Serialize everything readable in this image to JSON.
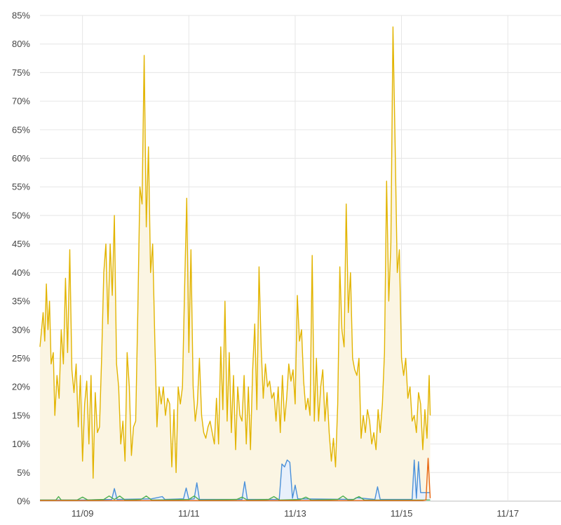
{
  "chart_data": {
    "type": "area",
    "title": "",
    "xlabel": "",
    "ylabel": "",
    "ylim": [
      0,
      85
    ],
    "y_unit": "%",
    "y_ticks": [
      0,
      5,
      10,
      15,
      20,
      25,
      30,
      35,
      40,
      45,
      50,
      55,
      60,
      65,
      70,
      75,
      80,
      85
    ],
    "y_tick_labels": [
      "0%",
      "5%",
      "10%",
      "15%",
      "20%",
      "25%",
      "30%",
      "35%",
      "40%",
      "45%",
      "50%",
      "55%",
      "60%",
      "65%",
      "70%",
      "75%",
      "80%",
      "85%"
    ],
    "x_ticks": [
      "11/09",
      "11/11",
      "11/13",
      "11/15",
      "11/17"
    ],
    "x_tick_positions": [
      1.5,
      3.5,
      5.5,
      7.5,
      9.5
    ],
    "xlim": [
      0.7,
      10.5
    ],
    "grid": true,
    "legend": "none",
    "series": [
      {
        "color": "#e2b400",
        "fill": "#fbf5e3",
        "points": [
          [
            0.7,
            27
          ],
          [
            0.73,
            30
          ],
          [
            0.76,
            33
          ],
          [
            0.79,
            28
          ],
          [
            0.82,
            38
          ],
          [
            0.85,
            30
          ],
          [
            0.88,
            35
          ],
          [
            0.91,
            24
          ],
          [
            0.95,
            26
          ],
          [
            0.98,
            15
          ],
          [
            1.02,
            22
          ],
          [
            1.06,
            18
          ],
          [
            1.1,
            30
          ],
          [
            1.14,
            24
          ],
          [
            1.18,
            39
          ],
          [
            1.22,
            26
          ],
          [
            1.26,
            44
          ],
          [
            1.3,
            23
          ],
          [
            1.34,
            19
          ],
          [
            1.38,
            24
          ],
          [
            1.42,
            13
          ],
          [
            1.46,
            22
          ],
          [
            1.5,
            7
          ],
          [
            1.54,
            17
          ],
          [
            1.58,
            21
          ],
          [
            1.62,
            10
          ],
          [
            1.66,
            22
          ],
          [
            1.7,
            4
          ],
          [
            1.74,
            19
          ],
          [
            1.78,
            12
          ],
          [
            1.82,
            13
          ],
          [
            1.86,
            25
          ],
          [
            1.9,
            40
          ],
          [
            1.94,
            45
          ],
          [
            1.98,
            31
          ],
          [
            2.02,
            45
          ],
          [
            2.06,
            36
          ],
          [
            2.1,
            50
          ],
          [
            2.14,
            24
          ],
          [
            2.18,
            20
          ],
          [
            2.22,
            10
          ],
          [
            2.26,
            14
          ],
          [
            2.3,
            7
          ],
          [
            2.34,
            26
          ],
          [
            2.38,
            20
          ],
          [
            2.42,
            8
          ],
          [
            2.46,
            13
          ],
          [
            2.5,
            14
          ],
          [
            2.54,
            33
          ],
          [
            2.58,
            55
          ],
          [
            2.62,
            52
          ],
          [
            2.66,
            78
          ],
          [
            2.7,
            48
          ],
          [
            2.74,
            62
          ],
          [
            2.78,
            40
          ],
          [
            2.82,
            45
          ],
          [
            2.86,
            28
          ],
          [
            2.9,
            13
          ],
          [
            2.94,
            20
          ],
          [
            2.98,
            17
          ],
          [
            3.02,
            20
          ],
          [
            3.06,
            15
          ],
          [
            3.1,
            18
          ],
          [
            3.14,
            17
          ],
          [
            3.18,
            6
          ],
          [
            3.22,
            16
          ],
          [
            3.26,
            5
          ],
          [
            3.3,
            20
          ],
          [
            3.34,
            17
          ],
          [
            3.38,
            20
          ],
          [
            3.42,
            37
          ],
          [
            3.46,
            53
          ],
          [
            3.5,
            26
          ],
          [
            3.54,
            44
          ],
          [
            3.58,
            20
          ],
          [
            3.62,
            14
          ],
          [
            3.66,
            17
          ],
          [
            3.7,
            25
          ],
          [
            3.74,
            15
          ],
          [
            3.78,
            12
          ],
          [
            3.82,
            11
          ],
          [
            3.86,
            13
          ],
          [
            3.9,
            14
          ],
          [
            3.94,
            12
          ],
          [
            3.98,
            10
          ],
          [
            4.02,
            18
          ],
          [
            4.06,
            10
          ],
          [
            4.1,
            27
          ],
          [
            4.14,
            16
          ],
          [
            4.18,
            35
          ],
          [
            4.22,
            14
          ],
          [
            4.26,
            26
          ],
          [
            4.3,
            12
          ],
          [
            4.34,
            22
          ],
          [
            4.38,
            9
          ],
          [
            4.42,
            20
          ],
          [
            4.46,
            15
          ],
          [
            4.5,
            14
          ],
          [
            4.54,
            22
          ],
          [
            4.58,
            10
          ],
          [
            4.62,
            20
          ],
          [
            4.66,
            9
          ],
          [
            4.7,
            23
          ],
          [
            4.74,
            31
          ],
          [
            4.78,
            16
          ],
          [
            4.82,
            41
          ],
          [
            4.86,
            27
          ],
          [
            4.9,
            18
          ],
          [
            4.94,
            24
          ],
          [
            4.98,
            20
          ],
          [
            5.02,
            21
          ],
          [
            5.06,
            18
          ],
          [
            5.1,
            19
          ],
          [
            5.14,
            14
          ],
          [
            5.18,
            20
          ],
          [
            5.22,
            12
          ],
          [
            5.26,
            22
          ],
          [
            5.3,
            14
          ],
          [
            5.34,
            18
          ],
          [
            5.38,
            24
          ],
          [
            5.42,
            21
          ],
          [
            5.46,
            23
          ],
          [
            5.5,
            17
          ],
          [
            5.54,
            36
          ],
          [
            5.58,
            28
          ],
          [
            5.62,
            30
          ],
          [
            5.66,
            21
          ],
          [
            5.7,
            16
          ],
          [
            5.74,
            18
          ],
          [
            5.78,
            15
          ],
          [
            5.82,
            43
          ],
          [
            5.86,
            14
          ],
          [
            5.9,
            25
          ],
          [
            5.94,
            14
          ],
          [
            5.98,
            20
          ],
          [
            6.02,
            23
          ],
          [
            6.06,
            14
          ],
          [
            6.1,
            19
          ],
          [
            6.14,
            12
          ],
          [
            6.18,
            7
          ],
          [
            6.22,
            11
          ],
          [
            6.26,
            6
          ],
          [
            6.3,
            17
          ],
          [
            6.34,
            41
          ],
          [
            6.38,
            30
          ],
          [
            6.42,
            27
          ],
          [
            6.46,
            52
          ],
          [
            6.5,
            33
          ],
          [
            6.54,
            40
          ],
          [
            6.58,
            25
          ],
          [
            6.62,
            23
          ],
          [
            6.66,
            22
          ],
          [
            6.7,
            25
          ],
          [
            6.74,
            11
          ],
          [
            6.78,
            15
          ],
          [
            6.82,
            12
          ],
          [
            6.86,
            16
          ],
          [
            6.9,
            14
          ],
          [
            6.94,
            10
          ],
          [
            6.98,
            12
          ],
          [
            7.02,
            9
          ],
          [
            7.06,
            16
          ],
          [
            7.1,
            12
          ],
          [
            7.14,
            17
          ],
          [
            7.18,
            26
          ],
          [
            7.22,
            56
          ],
          [
            7.26,
            35
          ],
          [
            7.3,
            45
          ],
          [
            7.34,
            83
          ],
          [
            7.38,
            62
          ],
          [
            7.42,
            40
          ],
          [
            7.46,
            44
          ],
          [
            7.5,
            25
          ],
          [
            7.54,
            22
          ],
          [
            7.58,
            25
          ],
          [
            7.62,
            18
          ],
          [
            7.66,
            20
          ],
          [
            7.7,
            14
          ],
          [
            7.74,
            15
          ],
          [
            7.78,
            12
          ],
          [
            7.82,
            19
          ],
          [
            7.86,
            17
          ],
          [
            7.9,
            9
          ],
          [
            7.94,
            16
          ],
          [
            7.98,
            11
          ],
          [
            8.02,
            22
          ],
          [
            8.04,
            15
          ]
        ]
      },
      {
        "color": "#4a90d9",
        "fill": "#e8f0fb",
        "points": [
          [
            0.7,
            0.2
          ],
          [
            1.5,
            0.2
          ],
          [
            2.05,
            0.3
          ],
          [
            2.1,
            2.2
          ],
          [
            2.15,
            0.3
          ],
          [
            2.8,
            0.4
          ],
          [
            3.0,
            0.8
          ],
          [
            3.05,
            0.3
          ],
          [
            3.4,
            0.4
          ],
          [
            3.45,
            2.3
          ],
          [
            3.5,
            0.3
          ],
          [
            3.6,
            0.4
          ],
          [
            3.65,
            3.2
          ],
          [
            3.7,
            0.3
          ],
          [
            4.5,
            0.3
          ],
          [
            4.55,
            3.4
          ],
          [
            4.6,
            0.3
          ],
          [
            5.2,
            0.3
          ],
          [
            5.25,
            6.5
          ],
          [
            5.3,
            6.0
          ],
          [
            5.35,
            7.2
          ],
          [
            5.4,
            6.8
          ],
          [
            5.45,
            0.5
          ],
          [
            5.5,
            2.8
          ],
          [
            5.55,
            0.4
          ],
          [
            6.6,
            0.3
          ],
          [
            6.65,
            0.6
          ],
          [
            7.0,
            0.3
          ],
          [
            7.05,
            2.5
          ],
          [
            7.1,
            0.3
          ],
          [
            7.7,
            0.3
          ],
          [
            7.74,
            7.2
          ],
          [
            7.78,
            0.5
          ],
          [
            7.82,
            6.9
          ],
          [
            7.86,
            1.5
          ],
          [
            8.0,
            1.5
          ],
          [
            8.04,
            1.5
          ]
        ]
      },
      {
        "color": "#4caf50",
        "fill": "none",
        "points": [
          [
            0.7,
            0.2
          ],
          [
            1.0,
            0.2
          ],
          [
            1.05,
            0.8
          ],
          [
            1.1,
            0.2
          ],
          [
            1.4,
            0.2
          ],
          [
            1.5,
            0.7
          ],
          [
            1.6,
            0.2
          ],
          [
            1.9,
            0.3
          ],
          [
            2.0,
            0.9
          ],
          [
            2.1,
            0.3
          ],
          [
            2.2,
            0.9
          ],
          [
            2.3,
            0.2
          ],
          [
            2.6,
            0.3
          ],
          [
            2.7,
            0.9
          ],
          [
            2.8,
            0.2
          ],
          [
            3.5,
            0.3
          ],
          [
            3.6,
            0.9
          ],
          [
            3.7,
            0.2
          ],
          [
            4.4,
            0.3
          ],
          [
            4.5,
            0.7
          ],
          [
            4.6,
            0.2
          ],
          [
            5.0,
            0.3
          ],
          [
            5.1,
            0.8
          ],
          [
            5.2,
            0.2
          ],
          [
            5.6,
            0.3
          ],
          [
            5.7,
            0.7
          ],
          [
            5.8,
            0.2
          ],
          [
            6.3,
            0.3
          ],
          [
            6.4,
            0.9
          ],
          [
            6.5,
            0.2
          ],
          [
            6.6,
            0.3
          ],
          [
            6.7,
            0.8
          ],
          [
            6.8,
            0.2
          ],
          [
            7.6,
            0.2
          ],
          [
            8.04,
            0.2
          ]
        ]
      },
      {
        "color": "#e8650f",
        "fill": "none",
        "points": [
          [
            0.7,
            0.1
          ],
          [
            7.9,
            0.1
          ],
          [
            7.96,
            0.2
          ],
          [
            8.0,
            7.5
          ],
          [
            8.04,
            0.5
          ]
        ]
      }
    ]
  }
}
